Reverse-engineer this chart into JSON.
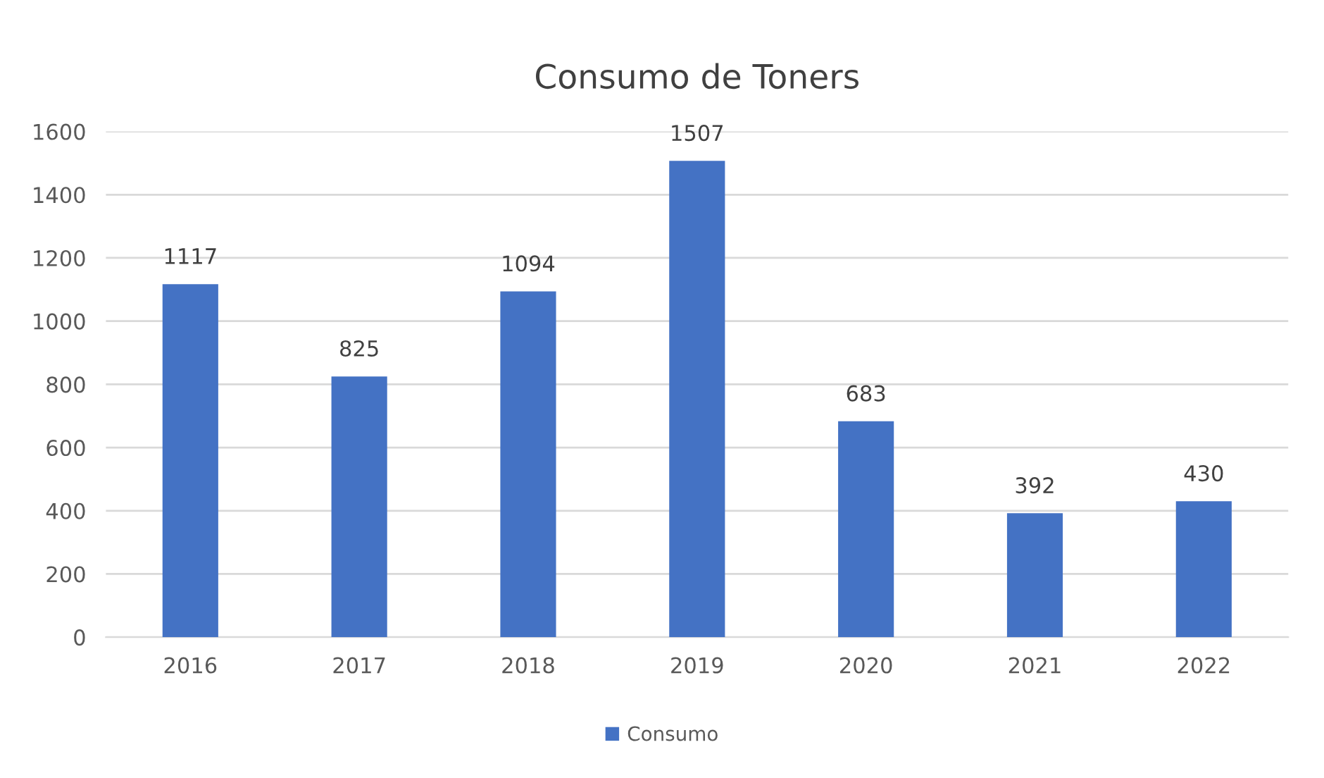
{
  "chart_data": {
    "type": "bar",
    "title": "Consumo de Toners",
    "categories": [
      "2016",
      "2017",
      "2018",
      "2019",
      "2020",
      "2021",
      "2022"
    ],
    "series": [
      {
        "name": "Consumo",
        "color": "#4472c4",
        "values": [
          1117,
          825,
          1094,
          1507,
          683,
          392,
          430
        ]
      }
    ],
    "ylim": [
      0,
      1600
    ],
    "yticks": [
      0,
      200,
      400,
      600,
      800,
      1000,
      1200,
      1400,
      1600
    ],
    "grid": "y",
    "legend": "bottom",
    "data_labels": true
  }
}
